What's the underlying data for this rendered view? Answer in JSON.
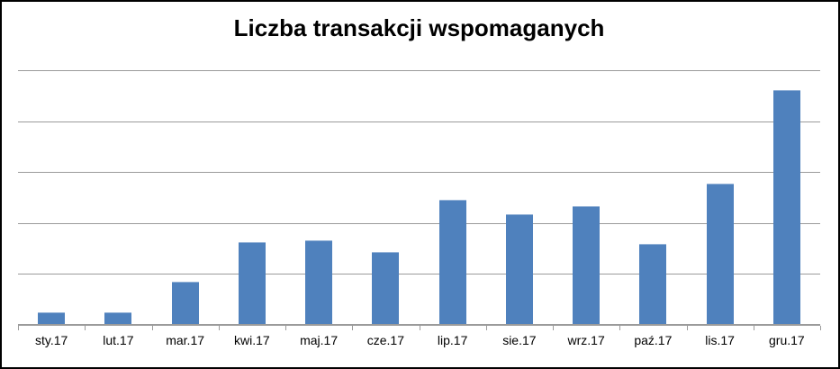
{
  "chart_data": {
    "type": "bar",
    "title": "Liczba transakcji wspomaganych",
    "categories": [
      "sty.17",
      "lut.17",
      "mar.17",
      "kwi.17",
      "maj.17",
      "cze.17",
      "lip.17",
      "sie.17",
      "wrz.17",
      "paź.17",
      "lis.17",
      "gru.17"
    ],
    "values": [
      0.23,
      0.23,
      0.83,
      1.6,
      1.64,
      1.41,
      2.43,
      2.15,
      2.31,
      1.58,
      2.76,
      4.59
    ],
    "unit": "gridline-intervals",
    "ylim": [
      0,
      5
    ],
    "gridline_interval": 1,
    "y_tick_labels_visible": false,
    "grid": true,
    "legend": false,
    "xlabel": "",
    "ylabel": "",
    "colors": {
      "bar": "#4F81BD",
      "bar_highlight": "#95b3d7",
      "gridline": "#9b9b9b",
      "axis": "#9b9b9b",
      "title": "#000000",
      "label": "#000000",
      "frame_border": "#000000",
      "background": "#ffffff"
    }
  }
}
